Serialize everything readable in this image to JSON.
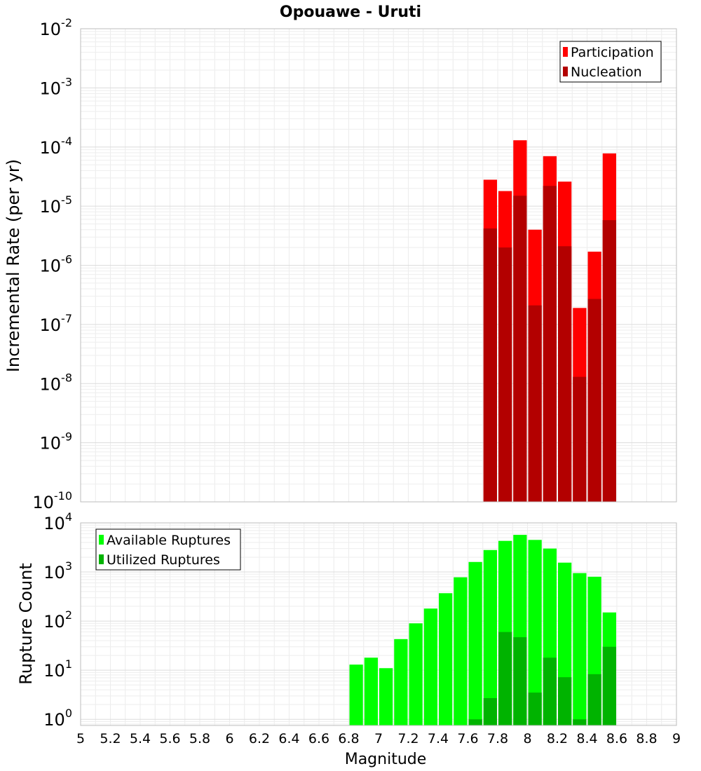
{
  "chart_data": [
    {
      "type": "bar",
      "title": "Opouawe - Uruti",
      "xlabel": "",
      "ylabel": "Incremental Rate (per yr)",
      "x_scale": "linear",
      "y_scale": "log",
      "xlim": [
        5,
        9
      ],
      "ylim": [
        1e-10,
        0.01
      ],
      "grid": true,
      "legend_position": "top-right",
      "bar_width": 0.1,
      "series": [
        {
          "name": "Participation",
          "color": "#ff0000",
          "x": [
            7.75,
            7.85,
            7.95,
            8.05,
            8.15,
            8.25,
            8.35,
            8.45,
            8.55
          ],
          "values": [
            2.8e-05,
            1.8e-05,
            0.00013,
            4e-06,
            7e-05,
            2.6e-05,
            1.9e-07,
            1.7e-06,
            7.8e-05
          ]
        },
        {
          "name": "Nucleation",
          "color": "#b30000",
          "x": [
            7.75,
            7.85,
            7.95,
            8.05,
            8.15,
            8.25,
            8.35,
            8.45,
            8.55
          ],
          "values": [
            4.2e-06,
            2e-06,
            1.5e-05,
            2.1e-07,
            2.2e-05,
            2.1e-06,
            1.3e-08,
            2.7e-07,
            5.8e-06
          ]
        }
      ]
    },
    {
      "type": "bar",
      "title": "",
      "xlabel": "Magnitude",
      "ylabel": "Rupture Count",
      "x_scale": "linear",
      "y_scale": "log",
      "xlim": [
        5,
        9
      ],
      "ylim": [
        0.75,
        10000
      ],
      "x_ticks": [
        "5",
        "5.2",
        "5.4",
        "5.6",
        "5.8",
        "6",
        "6.2",
        "6.4",
        "6.6",
        "6.8",
        "7",
        "7.2",
        "7.4",
        "7.6",
        "7.8",
        "8",
        "8.2",
        "8.4",
        "8.6",
        "8.8",
        "9"
      ],
      "grid": true,
      "legend_position": "top-left",
      "bar_width": 0.1,
      "series": [
        {
          "name": "Available Ruptures",
          "color": "#00ff00",
          "x": [
            6.85,
            6.95,
            7.05,
            7.15,
            7.25,
            7.35,
            7.45,
            7.55,
            7.65,
            7.75,
            7.85,
            7.95,
            8.05,
            8.15,
            8.25,
            8.35,
            8.45,
            8.55
          ],
          "values": [
            13,
            18,
            11,
            43,
            90,
            180,
            370,
            780,
            1600,
            2800,
            4300,
            5700,
            4500,
            3000,
            1550,
            950,
            800,
            150
          ]
        },
        {
          "name": "Utilized Ruptures",
          "color": "#00b300",
          "x": [
            7.65,
            7.75,
            7.85,
            7.95,
            8.05,
            8.15,
            8.25,
            8.35,
            8.45,
            8.55
          ],
          "values": [
            1,
            2.7,
            60,
            47,
            3.5,
            18,
            7.2,
            1,
            8.3,
            30
          ]
        }
      ]
    }
  ]
}
